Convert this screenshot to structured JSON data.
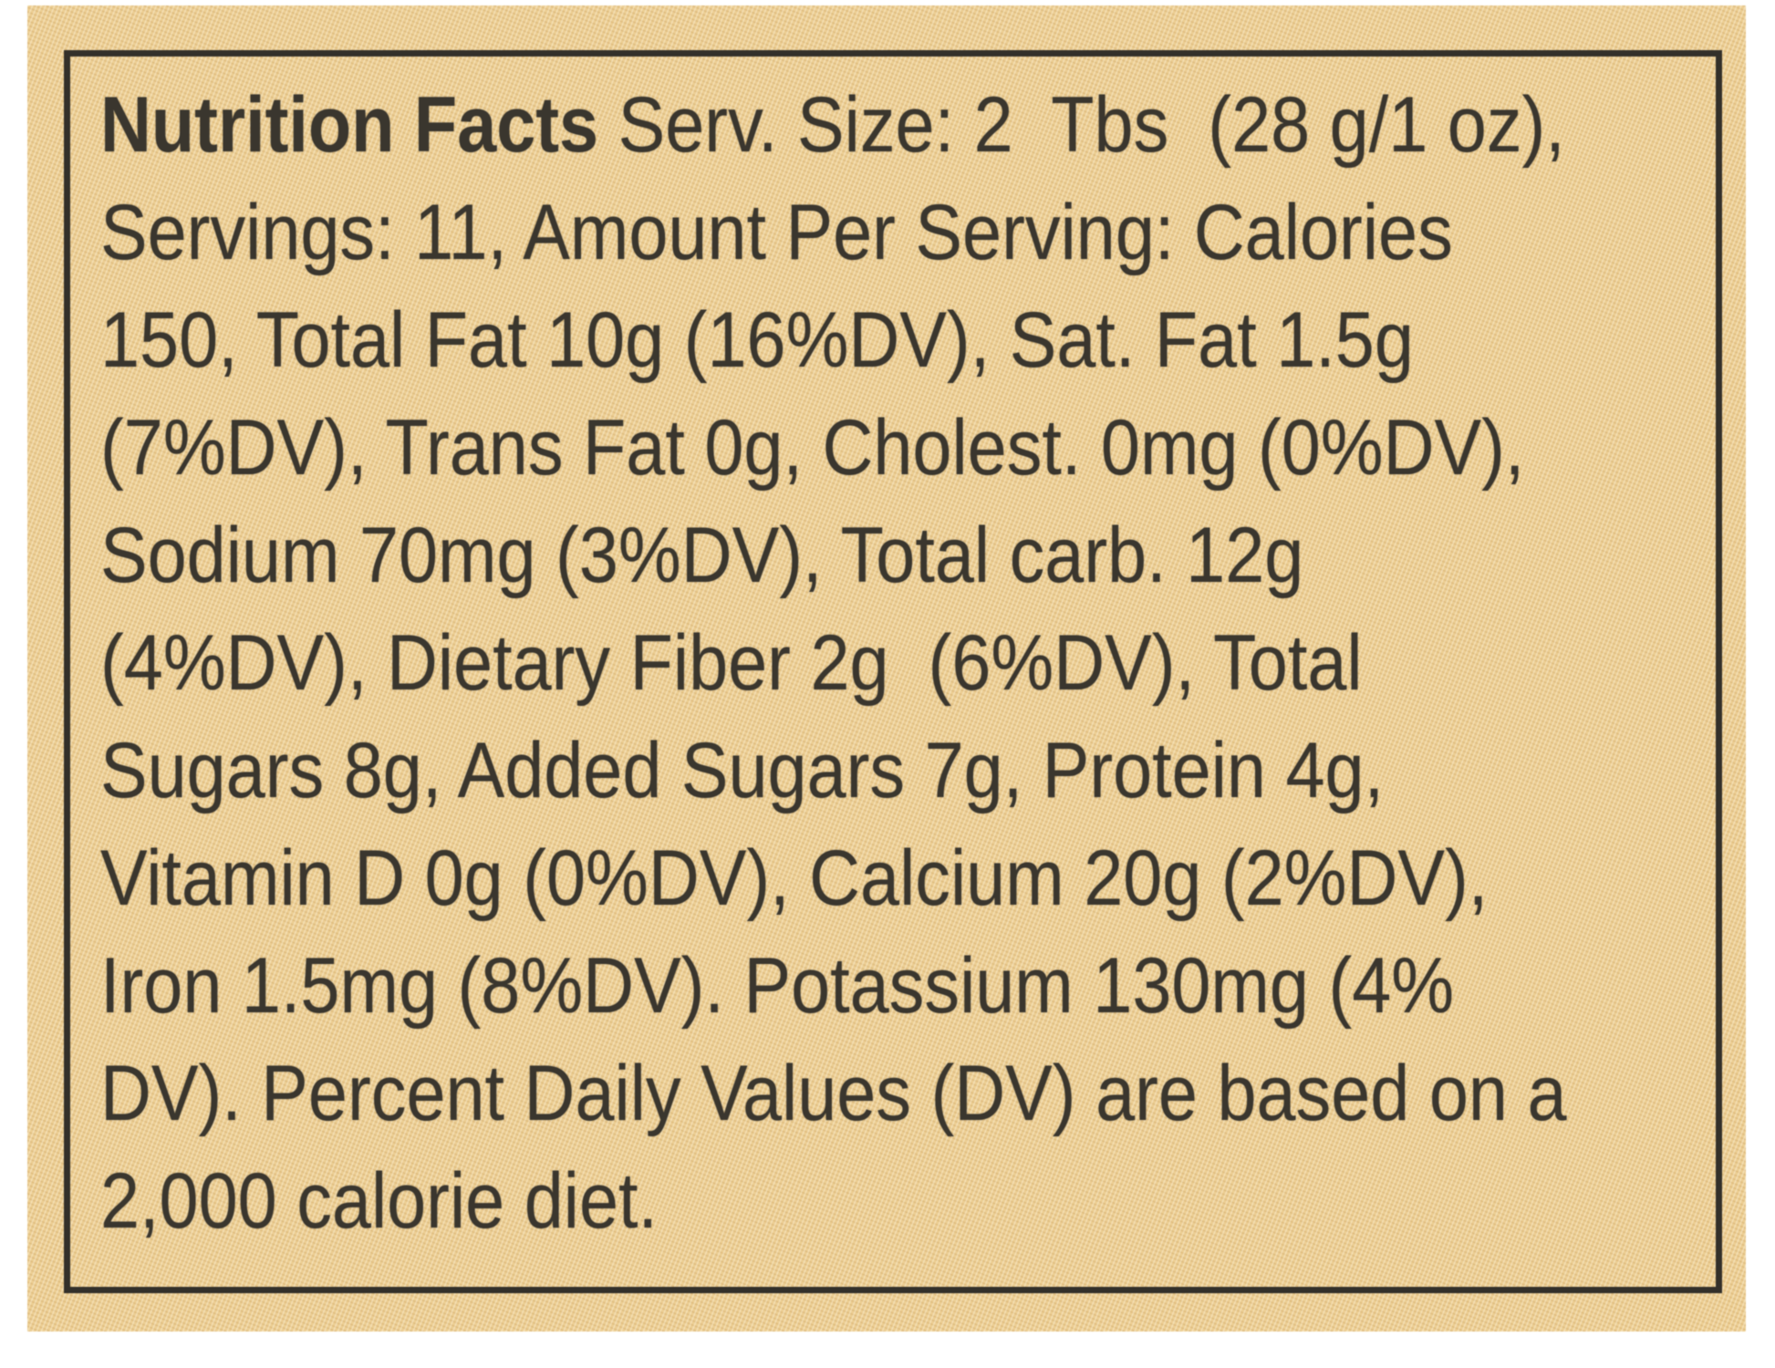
{
  "label": {
    "title": "Nutrition Facts",
    "line1_rest": " Serv. Size: 2  Tbs  (28 g/1 oz),",
    "lines": [
      "Servings: 11, Amount Per Serving: Calories",
      "150, Total Fat 10g (16%DV), Sat. Fat 1.5g",
      "(7%DV), Trans Fat 0g, Cholest. 0mg (0%DV),",
      "Sodium 70mg (3%DV), Total carb. 12g",
      "(4%DV), Dietary Fiber 2g  (6%DV), Total",
      "Sugars 8g, Added Sugars 7g, Protein 4g,",
      "Vitamin D 0g (0%DV), Calcium 20g (2%DV),",
      "Iron 1.5mg (8%DV). Potassium 130mg (4%",
      "DV). Percent Daily Values (DV) are based on a",
      "2,000 calorie diet."
    ],
    "facts": {
      "serving_size": "2 Tbs (28 g/1 oz)",
      "servings_per_container": "11",
      "calories": "150",
      "total_fat": "10g (16%DV)",
      "saturated_fat": "1.5g (7%DV)",
      "trans_fat": "0g",
      "cholesterol": "0mg (0%DV)",
      "sodium": "70mg (3%DV)",
      "total_carbohydrate": "12g (4%DV)",
      "dietary_fiber": "2g (6%DV)",
      "total_sugars": "8g",
      "added_sugars": "7g",
      "protein": "4g",
      "vitamin_d": "0g (0%DV)",
      "calcium": "20g (2%DV)",
      "iron": "1.5mg (8%DV)",
      "potassium": "130mg (4%DV)",
      "footnote": "Percent Daily Values (DV) are based on a 2,000 calorie diet."
    },
    "colors": {
      "background": "#ecce93",
      "text": "#3a362e",
      "border": "#33302a",
      "page": "#ffffff"
    }
  }
}
